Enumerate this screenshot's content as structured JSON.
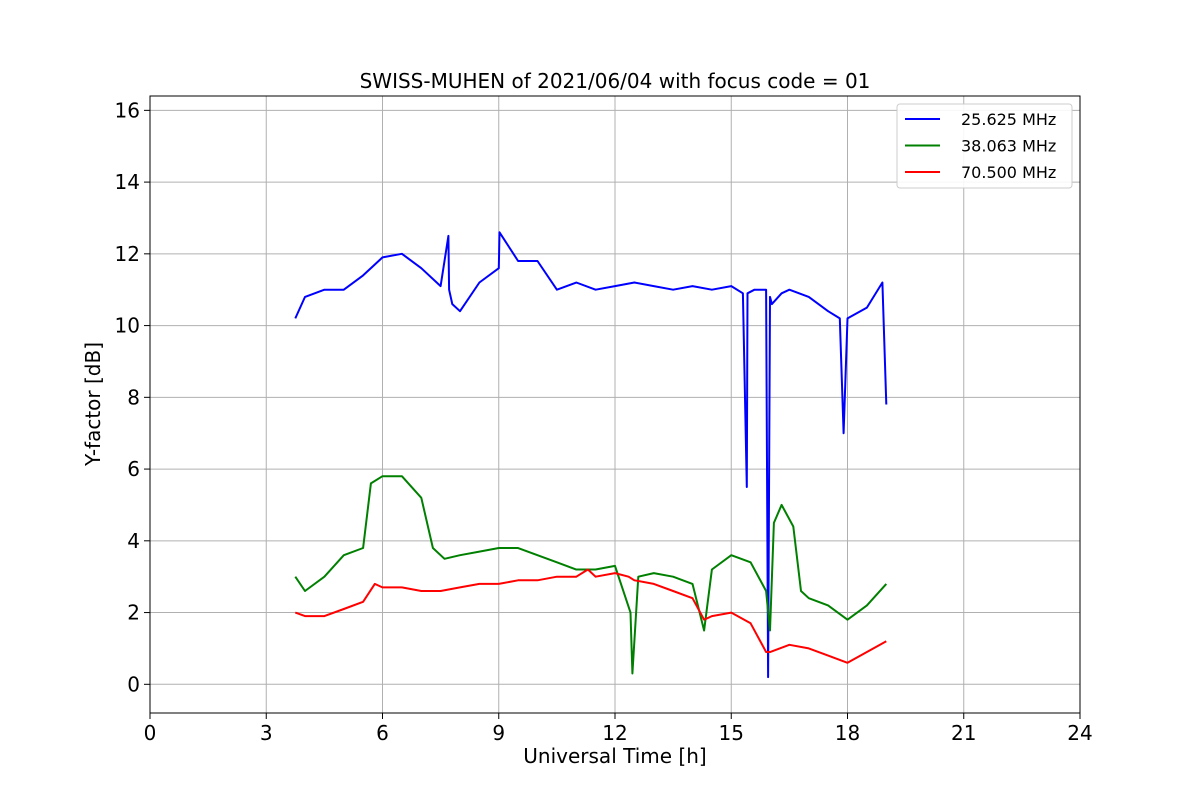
{
  "chart_data": {
    "type": "line",
    "title": "SWISS-MUHEN of 2021/06/04 with focus code = 01",
    "xlabel": "Universal Time [h]",
    "ylabel": "Y-factor [dB]",
    "xlim": [
      0,
      24
    ],
    "ylim": [
      -0.8,
      16.4
    ],
    "x_ticks": [
      0,
      3,
      6,
      9,
      12,
      15,
      18,
      21,
      24
    ],
    "y_ticks": [
      0,
      2,
      4,
      6,
      8,
      10,
      12,
      14,
      16
    ],
    "grid": true,
    "legend_position": "top-right",
    "series": [
      {
        "name": "25.625 MHz",
        "color": "#0000ff",
        "x": [
          3.75,
          4.0,
          4.5,
          5.0,
          5.5,
          6.0,
          6.5,
          7.0,
          7.5,
          7.7,
          7.72,
          7.8,
          8.0,
          8.5,
          9.0,
          9.02,
          9.5,
          10.0,
          10.5,
          11.0,
          11.5,
          12.0,
          12.5,
          13.0,
          13.5,
          14.0,
          14.5,
          15.0,
          15.3,
          15.4,
          15.42,
          15.6,
          15.9,
          15.95,
          16.0,
          16.05,
          16.3,
          16.5,
          17.0,
          17.5,
          17.8,
          17.9,
          18.0,
          18.5,
          18.9,
          19.0
        ],
        "y": [
          10.2,
          10.8,
          11.0,
          11.0,
          11.4,
          11.9,
          12.0,
          11.6,
          11.1,
          12.5,
          11.0,
          10.6,
          10.4,
          11.2,
          11.6,
          12.6,
          11.8,
          11.8,
          11.0,
          11.2,
          11.0,
          11.1,
          11.2,
          11.1,
          11.0,
          11.1,
          11.0,
          11.1,
          10.9,
          5.5,
          10.9,
          11.0,
          11.0,
          0.2,
          10.8,
          10.6,
          10.9,
          11.0,
          10.8,
          10.4,
          10.2,
          7.0,
          10.2,
          10.5,
          11.2,
          7.8
        ]
      },
      {
        "name": "38.063 MHz",
        "color": "#008000",
        "x": [
          3.75,
          4.0,
          4.5,
          5.0,
          5.5,
          5.7,
          6.0,
          6.5,
          7.0,
          7.3,
          7.6,
          8.0,
          8.5,
          9.0,
          9.5,
          10.0,
          10.5,
          11.0,
          11.5,
          12.0,
          12.4,
          12.45,
          12.6,
          13.0,
          13.5,
          14.0,
          14.3,
          14.5,
          15.0,
          15.5,
          15.9,
          16.0,
          16.1,
          16.3,
          16.6,
          16.8,
          17.0,
          17.5,
          18.0,
          18.5,
          19.0
        ],
        "y": [
          3.0,
          2.6,
          3.0,
          3.6,
          3.8,
          5.6,
          5.8,
          5.8,
          5.2,
          3.8,
          3.5,
          3.6,
          3.7,
          3.8,
          3.8,
          3.6,
          3.4,
          3.2,
          3.2,
          3.3,
          2.0,
          0.3,
          3.0,
          3.1,
          3.0,
          2.8,
          1.5,
          3.2,
          3.6,
          3.4,
          2.6,
          1.5,
          4.5,
          5.0,
          4.4,
          2.6,
          2.4,
          2.2,
          1.8,
          2.2,
          2.8
        ]
      },
      {
        "name": "70.500 MHz",
        "color": "#ff0000",
        "x": [
          3.75,
          4.0,
          4.5,
          5.0,
          5.5,
          5.8,
          6.0,
          6.5,
          7.0,
          7.5,
          8.0,
          8.5,
          9.0,
          9.5,
          10.0,
          10.5,
          11.0,
          11.3,
          11.5,
          12.0,
          12.35,
          12.5,
          13.0,
          13.5,
          14.0,
          14.3,
          14.5,
          15.0,
          15.5,
          15.9,
          16.0,
          16.5,
          17.0,
          17.5,
          18.0,
          18.5,
          19.0
        ],
        "y": [
          2.0,
          1.9,
          1.9,
          2.1,
          2.3,
          2.8,
          2.7,
          2.7,
          2.6,
          2.6,
          2.7,
          2.8,
          2.8,
          2.9,
          2.9,
          3.0,
          3.0,
          3.2,
          3.0,
          3.1,
          3.0,
          2.9,
          2.8,
          2.6,
          2.4,
          1.8,
          1.9,
          2.0,
          1.7,
          0.9,
          0.9,
          1.1,
          1.0,
          0.8,
          0.6,
          0.9,
          1.2
        ]
      }
    ]
  }
}
